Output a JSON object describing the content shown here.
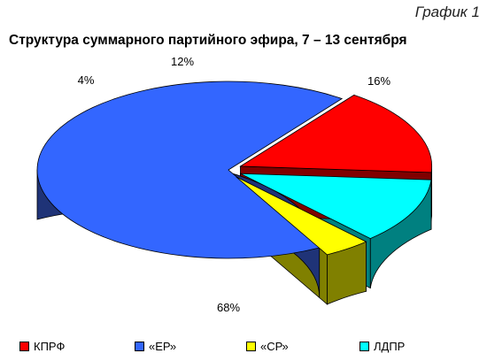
{
  "header": {
    "corner_label": "График 1"
  },
  "chart_data": {
    "type": "pie",
    "title": "Структура суммарного партийного эфира, 7 – 13 сентября",
    "legend_position": "bottom",
    "three_d": true,
    "slices": [
      {
        "name": "КПРФ",
        "value": 16,
        "label": "16%",
        "color": "#ff0000",
        "side_color": "#800000",
        "exploded": true
      },
      {
        "name": "«ЕР»",
        "value": 68,
        "label": "68%",
        "color": "#3366ff",
        "side_color": "#1f3377",
        "exploded": false
      },
      {
        "name": "«СР»",
        "value": 4,
        "label": "4%",
        "color": "#ffff00",
        "side_color": "#808000",
        "exploded": true
      },
      {
        "name": "ЛДПР",
        "value": 12,
        "label": "12%",
        "color": "#00ffff",
        "side_color": "#008080",
        "exploded": true
      }
    ]
  }
}
